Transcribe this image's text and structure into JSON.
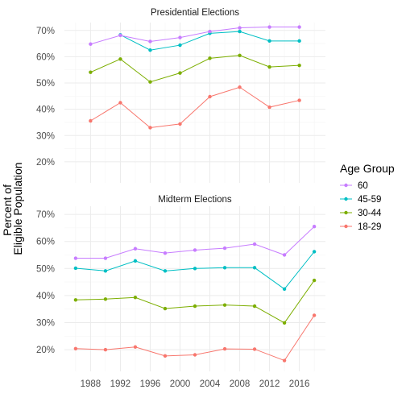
{
  "chart_data": {
    "type": "line",
    "ylabel_lines": [
      "Percent of",
      "Eligible Population"
    ],
    "legend": {
      "title": "Age Group",
      "placement": "right"
    },
    "x_ticks": [
      1988,
      1992,
      1996,
      2000,
      2004,
      2008,
      2012,
      2016
    ],
    "y_ticks": [
      20,
      30,
      40,
      50,
      60,
      70
    ],
    "y_tick_labels": [
      "20%",
      "30%",
      "40%",
      "50%",
      "60%",
      "70%"
    ],
    "xlim": [
      1984.5,
      2019.5
    ],
    "ylim": [
      12,
      73
    ],
    "colors": {
      "60": "#C77CFF",
      "45-59": "#00BFC4",
      "30-44": "#7CAE00",
      "18-29": "#F8766D"
    },
    "panels": [
      {
        "title": "Presidential Elections",
        "x": [
          1988,
          1992,
          1996,
          2000,
          2004,
          2008,
          2012,
          2016
        ],
        "series": [
          {
            "name": "60",
            "values": [
              64.8,
              68.1,
              65.8,
              67.3,
              69.6,
              71.0,
              71.3,
              71.3
            ]
          },
          {
            "name": "45-59",
            "values": [
              null,
              68.3,
              62.5,
              64.4,
              68.9,
              69.6,
              66.0,
              66.0
            ]
          },
          {
            "name": "30-44",
            "values": [
              54.1,
              59.1,
              50.4,
              53.8,
              59.4,
              60.5,
              56.1,
              56.7
            ]
          },
          {
            "name": "18-29",
            "values": [
              35.6,
              42.5,
              33.0,
              34.4,
              44.8,
              48.4,
              40.8,
              43.4
            ]
          }
        ]
      },
      {
        "title": "Midterm Elections",
        "x": [
          1986,
          1990,
          1994,
          1998,
          2002,
          2006,
          2010,
          2014,
          2018
        ],
        "series": [
          {
            "name": "60",
            "values": [
              53.8,
              53.8,
              57.3,
              55.7,
              56.8,
              57.5,
              59.0,
              55.0,
              65.5
            ]
          },
          {
            "name": "45-59",
            "values": [
              50.1,
              49.1,
              52.8,
              49.1,
              50.0,
              50.3,
              50.3,
              42.4,
              56.2
            ]
          },
          {
            "name": "30-44",
            "values": [
              38.4,
              38.7,
              39.3,
              35.2,
              36.1,
              36.5,
              36.1,
              29.9,
              45.6
            ]
          },
          {
            "name": "18-29",
            "values": [
              20.4,
              20.0,
              21.0,
              17.7,
              18.1,
              20.3,
              20.2,
              16.0,
              32.7
            ]
          }
        ]
      }
    ]
  }
}
